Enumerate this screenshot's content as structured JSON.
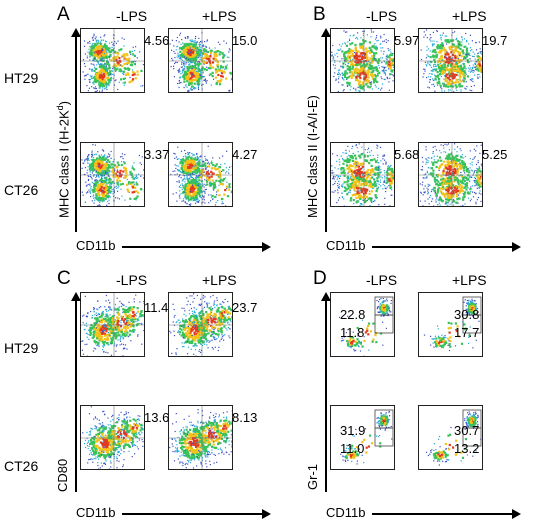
{
  "chart_data": [
    {
      "type": "flow-cytometry-density",
      "panel": "A",
      "conditions": [
        "-LPS",
        "+LPS"
      ],
      "cell_lines": [
        "HT29",
        "CT26"
      ],
      "xlabel": "CD11b",
      "ylabel_main": "MHC class I (H-2K",
      "ylabel_sup": "d",
      "ylabel_end": ")",
      "values": [
        [
          "4.56",
          "15.0"
        ],
        [
          "3.37",
          "4.27"
        ]
      ]
    },
    {
      "type": "flow-cytometry-density",
      "panel": "B",
      "conditions": [
        "-LPS",
        "+LPS"
      ],
      "cell_lines": [
        "HT29",
        "CT26"
      ],
      "xlabel": "CD11b",
      "ylabel": "MHC class II (I-A/I-E)",
      "values": [
        [
          "5.97",
          "19.7"
        ],
        [
          "5.68",
          "5.25"
        ]
      ]
    },
    {
      "type": "flow-cytometry-density",
      "panel": "C",
      "conditions": [
        "-LPS",
        "+LPS"
      ],
      "cell_lines": [
        "HT29",
        "CT26"
      ],
      "xlabel": "CD11b",
      "ylabel": "CD80",
      "values": [
        [
          "11.4",
          "23.7"
        ],
        [
          "13.6",
          "8.13"
        ]
      ]
    },
    {
      "type": "flow-cytometry-density",
      "panel": "D",
      "conditions": [
        "-LPS",
        "+LPS"
      ],
      "cell_lines": [
        "HT29",
        "CT26"
      ],
      "xlabel": "CD11b",
      "ylabel": "Gr-1",
      "values": [
        [
          {
            "upper": "22.8",
            "lower": "11.8"
          },
          {
            "upper": "30.8",
            "lower": "17.7"
          }
        ],
        [
          {
            "upper": "31.9",
            "lower": "11.0"
          },
          {
            "upper": "30.7",
            "lower": "13.2"
          }
        ]
      ]
    }
  ]
}
